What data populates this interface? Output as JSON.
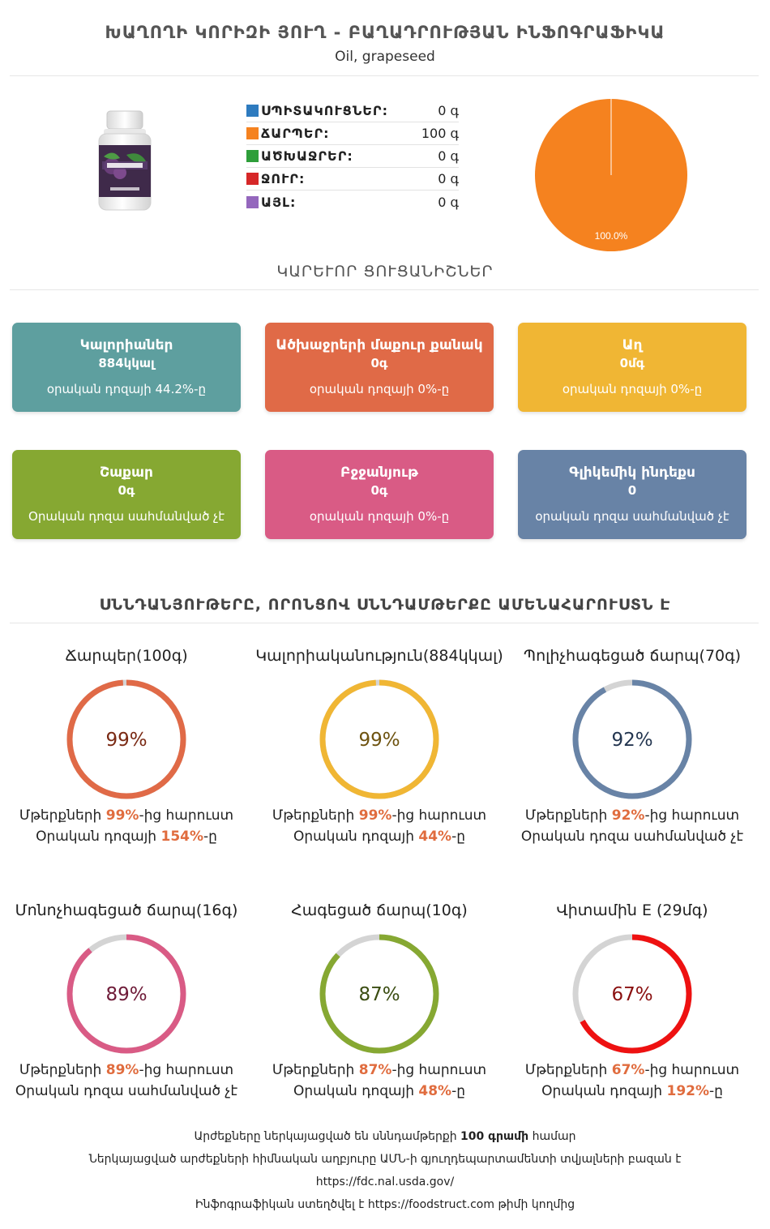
{
  "header": {
    "title": "ԽԱՂՈՂԻ ԿՈՐԻԶԻ ՅՈՒՂ - ԲԱՂԱԴՐՈՒԹՅԱՆ ԻՆՖՈԳՐԱՖԻԿԱ",
    "subtitle": "Oil, grapeseed"
  },
  "macros": [
    {
      "label": "ՍՊԻՏԱԿՈՒՑՆԵՐ:",
      "value": "0 գ",
      "color": "#2e7bbf"
    },
    {
      "label": "ՃԱՐՊԵՐ:",
      "value": "100 գ",
      "color": "#f5821f"
    },
    {
      "label": "ԱԾԽԱՋՐԵՐ:",
      "value": "0 գ",
      "color": "#2e9e3a"
    },
    {
      "label": "ՋՈՒՐ:",
      "value": "0 գ",
      "color": "#d62728"
    },
    {
      "label": "ԱՅԼ:",
      "value": "0 գ",
      "color": "#9467bd"
    }
  ],
  "pie": {
    "fat_percent": 100.0,
    "label": "100.0%",
    "color": "#f5821f"
  },
  "key_section": {
    "heading": "ԿԱՐԵՒՈՐ ՑՈՒՑԱՆԻՇՆԵՐ"
  },
  "cards": [
    {
      "title": "Կալորիաներ",
      "value": "884կկալ",
      "note": "օրական դոզայի 44.2%-ը",
      "color": "#5e9f9f"
    },
    {
      "title": "Ածխաջրերի մաքուր քանակ",
      "value": "0գ",
      "note": "օրական դոզայի 0%-ը",
      "color": "#e06a47"
    },
    {
      "title": "Աղ",
      "value": "0մգ",
      "note": "օրական դոզայի 0%-ը",
      "color": "#f0b634"
    },
    {
      "title": "Շաքար",
      "value": "0գ",
      "note": "Օրական դոզա սահմանված չէ",
      "color": "#86a832"
    },
    {
      "title": "Բջջանյութ",
      "value": "0գ",
      "note": "օրական դոզայի 0%-ը",
      "color": "#d95b85"
    },
    {
      "title": "Գլիկեմիկ ինդեքս",
      "value": "0",
      "note": "օրական դոզա սահմանված չէ",
      "color": "#6883a6"
    }
  ],
  "rich_section": {
    "heading": "ՍՆՆԴԱՆՅՈՒԹԵՐԸ, ՈՐՈՆՑՈՎ ՍՆՆԴԱՄԹԵՐՔԸ ԱՄԵՆԱՀԱՐՈՒՍՏՆ Է"
  },
  "nutrients": [
    {
      "title": "Ճարպեր(100գ)",
      "percent": 99,
      "percent_label": "99%",
      "color": "#e06a47",
      "text_color": "#7a2a14",
      "line1_pre": "Մթերքների ",
      "line1_pct": "99%",
      "line1_post": "-ից հարուստ",
      "line2_pre": "Օրական դոզայի ",
      "line2_pct": "154%",
      "line2_post": "-ը"
    },
    {
      "title": "Կալորիականություն(884կկալ)",
      "percent": 99,
      "percent_label": "99%",
      "color": "#f0b634",
      "text_color": "#6e5310",
      "line1_pre": "Մթերքների ",
      "line1_pct": "99%",
      "line1_post": "-ից հարուստ",
      "line2_pre": "Օրական դոզայի ",
      "line2_pct": "44%",
      "line2_post": "-ը"
    },
    {
      "title": "Պոլիչհագեցած ճարպ(70գ)",
      "percent": 92,
      "percent_label": "92%",
      "color": "#6883a6",
      "text_color": "#243650",
      "line1_pre": "Մթերքների ",
      "line1_pct": "92%",
      "line1_post": "-ից հարուստ",
      "line2_pre": "Օրական դոզա սահմանված չէ",
      "line2_pct": "",
      "line2_post": ""
    },
    {
      "title": "Մոնոչհագեցած ճարպ(16գ)",
      "percent": 89,
      "percent_label": "89%",
      "color": "#d95b85",
      "text_color": "#6e1b38",
      "line1_pre": "Մթերքների ",
      "line1_pct": "89%",
      "line1_post": "-ից հարուստ",
      "line2_pre": "Օրական դոզա սահմանված չէ",
      "line2_pct": "",
      "line2_post": ""
    },
    {
      "title": "Հագեցած ճարպ(10գ)",
      "percent": 87,
      "percent_label": "87%",
      "color": "#86a832",
      "text_color": "#3b4d12",
      "line1_pre": "Մթերքների ",
      "line1_pct": "87%",
      "line1_post": "-ից հարուստ",
      "line2_pre": "Օրական դոզայի ",
      "line2_pct": "48%",
      "line2_post": "-ը"
    },
    {
      "title": "Վիտամին E (29մգ)",
      "percent": 67,
      "percent_label": "67%",
      "color": "#ee1111",
      "text_color": "#8a1010",
      "line1_pre": "Մթերքների ",
      "line1_pct": "67%",
      "line1_post": "-ից հարուստ",
      "line2_pre": "Օրական դոզայի ",
      "line2_pct": "192%",
      "line2_post": "-ը"
    }
  ],
  "footer": {
    "line1_pre": "Արժեքները ներկայացված են սննդամթերքի ",
    "line1_bold": "100 գրամի",
    "line1_post": " համար",
    "line2": "Ներկայացված արժեքների հիմնական աղբյուրը ԱՄՆ-ի գյուղդեպարտամենտի տվյալների բազան է",
    "line3": "https://fdc.nal.usda.gov/",
    "line4_pre": "Ինֆոգրաֆիկան ստեղծվել է ",
    "line4_link": "https://foodstruct.com",
    "line4_post": " թիմի կողմից"
  }
}
